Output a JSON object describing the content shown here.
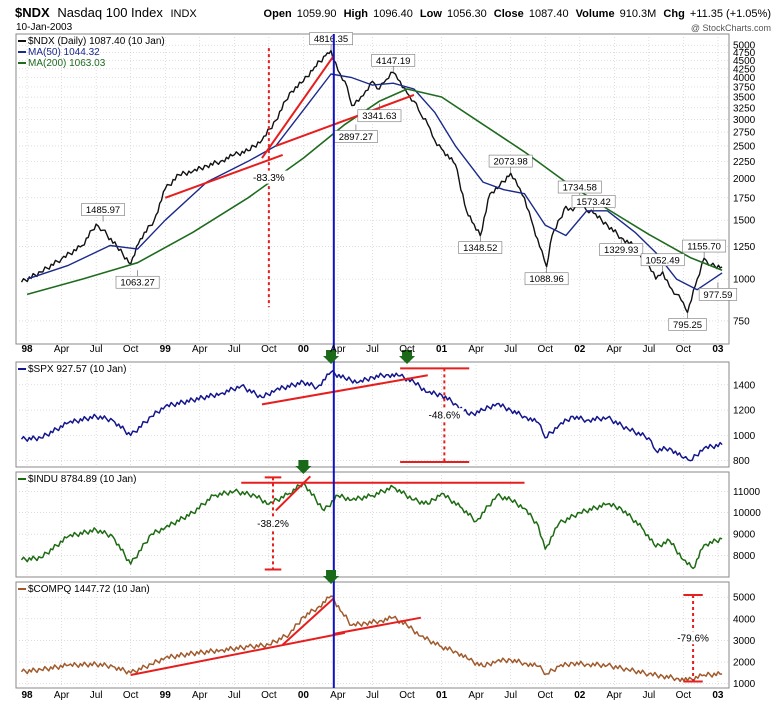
{
  "header": {
    "symbol": "$NDX",
    "name": "Nasdaq 100 Index",
    "exchange": "INDX",
    "date": "10-Jan-2003",
    "open_label": "Open",
    "open": "1059.90",
    "high_label": "High",
    "high": "1096.40",
    "low_label": "Low",
    "low": "1056.30",
    "close_label": "Close",
    "close": "1087.40",
    "volume_label": "Volume",
    "volume": "910.3M",
    "chg_label": "Chg",
    "chg": "+11.35 (+1.05%)",
    "watermark": "@ StockCharts.com"
  },
  "colors": {
    "ndx": "#111111",
    "ma50": "#1b2a8c",
    "ma200": "#1e6b1e",
    "spx": "#14168c",
    "indu": "#1d6b12",
    "compq": "#a05a2c",
    "annotation": "#e61e1e",
    "marker": "#1a6a1a",
    "vline": "#1010c8",
    "grid": "#c8c8c8"
  },
  "chart_data": [
    {
      "type": "line",
      "panel": "ndx",
      "legend": [
        {
          "text": "$NDX (Daily) 1087.40 (10 Jan)"
        },
        {
          "text": "MA(50) 1044.32"
        },
        {
          "text": "MA(200) 1063.03"
        }
      ],
      "y_scale": "log",
      "ylim": [
        640,
        5400
      ],
      "yticks": [
        750,
        1000,
        1250,
        1500,
        1750,
        2000,
        2250,
        2500,
        2750,
        3000,
        3250,
        3500,
        3750,
        4000,
        4250,
        4500,
        4750,
        5000
      ],
      "ytick_labels": [
        "750",
        "1000",
        "1250",
        "1500",
        "1750",
        "2000",
        "2250",
        "2500",
        "2750",
        "3000",
        "3250",
        "3500",
        "3750",
        "4000",
        "4250",
        "4500",
        "4750",
        "5000"
      ],
      "series": [
        {
          "key": "price",
          "t": [
            1997.96,
            1998.1,
            1998.25,
            1998.4,
            1998.5,
            1998.55,
            1998.65,
            1998.75,
            1998.82,
            1998.92,
            1999.0,
            1999.1,
            1999.2,
            1999.3,
            1999.4,
            1999.5,
            1999.6,
            1999.7,
            1999.8,
            1999.9,
            2000.0,
            2000.08,
            2000.16,
            2000.2,
            2000.25,
            2000.3,
            2000.35,
            2000.4,
            2000.45,
            2000.5,
            2000.55,
            2000.6,
            2000.65,
            2000.7,
            2000.75,
            2000.8,
            2000.85,
            2000.9,
            2000.95,
            2001.0,
            2001.1,
            2001.18,
            2001.22,
            2001.28,
            2001.35,
            2001.42,
            2001.5,
            2001.55,
            2001.6,
            2001.65,
            2001.71,
            2001.76,
            2001.8,
            2001.9,
            2001.95,
            2002.0,
            2002.05,
            2002.1,
            2002.2,
            2002.3,
            2002.4,
            2002.5,
            2002.55,
            2002.6,
            2002.65,
            2002.7,
            2002.75,
            2002.78,
            2002.85,
            2002.9,
            2002.95,
            2003.03
          ],
          "v": [
            980,
            1050,
            1150,
            1260,
            1460,
            1400,
            1250,
            1110,
            1320,
            1500,
            1860,
            2050,
            2100,
            2180,
            2250,
            2350,
            2420,
            2600,
            2980,
            3600,
            3900,
            4300,
            4650,
            4816,
            4200,
            3900,
            3300,
            3400,
            3650,
            3900,
            3700,
            3950,
            4147,
            3900,
            3600,
            3400,
            3100,
            2900,
            2600,
            2450,
            2200,
            1600,
            1480,
            1348,
            1800,
            1900,
            2073,
            1900,
            1750,
            1500,
            1250,
            1089,
            1350,
            1650,
            1600,
            1734,
            1600,
            1573,
            1450,
            1330,
            1250,
            1100,
            1000,
            1052,
            950,
            900,
            850,
            795,
            1000,
            1155,
            1100,
            1087
          ]
        },
        {
          "key": "ma50",
          "t": [
            1998.0,
            1998.3,
            1998.6,
            1998.8,
            1999.0,
            1999.3,
            1999.6,
            1999.8,
            2000.0,
            2000.2,
            2000.35,
            2000.5,
            2000.65,
            2000.8,
            2000.95,
            2001.1,
            2001.3,
            2001.45,
            2001.6,
            2001.75,
            2001.9,
            2002.05,
            2002.2,
            2002.4,
            2002.55,
            2002.7,
            2002.85,
            2003.03
          ],
          "v": [
            1000,
            1100,
            1260,
            1230,
            1500,
            1950,
            2250,
            2500,
            3200,
            4100,
            4000,
            3800,
            3850,
            3700,
            3150,
            2500,
            1950,
            1850,
            1800,
            1450,
            1350,
            1600,
            1600,
            1380,
            1200,
            1000,
            930,
            1044
          ]
        },
        {
          "key": "ma200",
          "t": [
            1998.0,
            1998.4,
            1998.8,
            1999.2,
            1999.6,
            2000.0,
            2000.3,
            2000.55,
            2000.75,
            2001.0,
            2001.3,
            2001.6,
            2001.9,
            2002.2,
            2002.5,
            2002.8,
            2003.03
          ],
          "v": [
            900,
            1000,
            1120,
            1380,
            1750,
            2300,
            2900,
            3400,
            3700,
            3500,
            2900,
            2400,
            1950,
            1620,
            1360,
            1160,
            1063
          ]
        }
      ],
      "annotations": [
        {
          "text": "4816.35",
          "t": 2000.2,
          "v": 4816
        },
        {
          "text": "4147.19",
          "t": 2000.65,
          "v": 4147
        },
        {
          "text": "3341.63",
          "t": 2000.55,
          "v": 3342
        },
        {
          "text": "2897.27",
          "t": 2000.38,
          "v": 2897
        },
        {
          "text": "2073.98",
          "t": 2001.5,
          "v": 2074
        },
        {
          "text": "1485.97",
          "t": 1998.55,
          "v": 1486
        },
        {
          "text": "1063.27",
          "t": 1998.8,
          "v": 1063
        },
        {
          "text": "1348.52",
          "t": 2001.28,
          "v": 1349
        },
        {
          "text": "1088.96",
          "t": 2001.76,
          "v": 1089
        },
        {
          "text": "1734.58",
          "t": 2002.0,
          "v": 1735
        },
        {
          "text": "1573.42",
          "t": 2002.1,
          "v": 1573
        },
        {
          "text": "1329.93",
          "t": 2002.3,
          "v": 1330
        },
        {
          "text": "1052.49",
          "t": 2002.6,
          "v": 1052
        },
        {
          "text": "795.25",
          "t": 2002.78,
          "v": 795
        },
        {
          "text": "1155.70",
          "t": 2002.9,
          "v": 1156
        },
        {
          "text": "977.59",
          "t": 2003.0,
          "v": 978
        },
        {
          "text": "-83.3%"
        }
      ],
      "drawn_lines": [
        {
          "t1": 1999.0,
          "v1": 1750,
          "t2": 1999.85,
          "v2": 2350
        },
        {
          "t1": 1999.7,
          "v1": 2300,
          "t2": 2000.22,
          "v2": 4650
        },
        {
          "t1": 1999.8,
          "v1": 2500,
          "t2": 2000.8,
          "v2": 3550
        },
        {
          "t1": 1999.75,
          "v1": 4900,
          "t2": 1999.75,
          "v2": 825
        }
      ]
    },
    {
      "type": "line",
      "panel": "spx",
      "legend": [
        {
          "text": "$SPX 927.57 (10 Jan)"
        }
      ],
      "ylim": [
        750,
        1580
      ],
      "yticks": [
        800,
        1000,
        1200,
        1400
      ],
      "ytick_labels": [
        "800",
        "1000",
        "1200",
        "1400"
      ],
      "series": [
        {
          "key": "price",
          "t": [
            1997.96,
            1998.1,
            1998.3,
            1998.5,
            1998.62,
            1998.75,
            1998.9,
            1999.0,
            1999.2,
            1999.4,
            1999.55,
            1999.7,
            1999.8,
            2000.0,
            2000.1,
            2000.2,
            2000.3,
            2000.4,
            2000.5,
            2000.6,
            2000.7,
            2000.8,
            2000.9,
            2001.0,
            2001.1,
            2001.2,
            2001.3,
            2001.4,
            2001.5,
            2001.6,
            2001.7,
            2001.75,
            2001.85,
            2001.95,
            2002.05,
            2002.2,
            2002.35,
            2002.5,
            2002.55,
            2002.65,
            2002.75,
            2002.8,
            2002.9,
            2003.03
          ],
          "v": [
            970,
            980,
            1100,
            1150,
            1120,
            1000,
            1150,
            1230,
            1280,
            1330,
            1390,
            1300,
            1360,
            1420,
            1380,
            1500,
            1450,
            1420,
            1460,
            1480,
            1470,
            1420,
            1340,
            1320,
            1250,
            1160,
            1200,
            1250,
            1200,
            1150,
            1100,
            980,
            1080,
            1150,
            1120,
            1140,
            1050,
            980,
            880,
            900,
            820,
            800,
            900,
            927
          ]
        }
      ],
      "annotations": [
        {
          "text": "-48.6%"
        }
      ],
      "drawn_lines": [
        {
          "t1": 1999.7,
          "v1": 1245,
          "t2": 2000.9,
          "v2": 1475
        },
        {
          "t1": 2000.7,
          "v1": 1530,
          "t2": 2001.2,
          "v2": 1530
        },
        {
          "t1": 2000.7,
          "v1": 790,
          "t2": 2001.2,
          "v2": 790
        },
        {
          "t1": 2001.02,
          "v1": 1530,
          "t2": 2001.02,
          "v2": 790
        }
      ]
    },
    {
      "type": "line",
      "panel": "indu",
      "legend": [
        {
          "text": "$INDU 8784.89 (10 Jan)"
        }
      ],
      "ylim": [
        7000,
        11900
      ],
      "yticks": [
        8000,
        9000,
        10000,
        11000
      ],
      "ytick_labels": [
        "8000",
        "9000",
        "10000",
        "11000"
      ],
      "series": [
        {
          "key": "price",
          "t": [
            1997.96,
            1998.1,
            1998.3,
            1998.5,
            1998.62,
            1998.75,
            1998.9,
            1999.0,
            1999.2,
            1999.35,
            1999.5,
            1999.65,
            1999.75,
            1999.9,
            2000.0,
            2000.15,
            2000.25,
            2000.35,
            2000.5,
            2000.65,
            2000.8,
            2000.9,
            2001.0,
            2001.15,
            2001.25,
            2001.4,
            2001.5,
            2001.6,
            2001.7,
            2001.75,
            2001.85,
            2002.0,
            2002.2,
            2002.3,
            2002.45,
            2002.55,
            2002.65,
            2002.75,
            2002.82,
            2002.9,
            2003.03
          ],
          "v": [
            7800,
            7900,
            8900,
            9200,
            8900,
            7600,
            9000,
            9300,
            10000,
            10800,
            11000,
            10800,
            10400,
            10900,
            11400,
            10100,
            10800,
            10600,
            10800,
            11200,
            10600,
            10400,
            10900,
            10200,
            9600,
            10800,
            10600,
            10200,
            9400,
            8300,
            9500,
            10000,
            10400,
            10200,
            9300,
            8400,
            8700,
            7800,
            7400,
            8500,
            8785
          ]
        }
      ],
      "annotations": [
        {
          "text": "-38.2%"
        }
      ],
      "drawn_lines": [
        {
          "t1": 1999.55,
          "v1": 11400,
          "t2": 2001.6,
          "v2": 11400
        },
        {
          "t1": 1999.8,
          "v1": 10100,
          "t2": 2000.05,
          "v2": 11700
        },
        {
          "t1": 1999.78,
          "v1": 11650,
          "t2": 1999.78,
          "v2": 7350
        },
        {
          "t1": 1999.72,
          "v1": 7350,
          "t2": 1999.84,
          "v2": 7350
        },
        {
          "t1": 1999.72,
          "v1": 11650,
          "t2": 1999.84,
          "v2": 11650
        }
      ]
    },
    {
      "type": "line",
      "panel": "compq",
      "legend": [
        {
          "text": "$COMPQ 1447.72 (10 Jan)"
        }
      ],
      "ylim": [
        800,
        5700
      ],
      "yticks": [
        1000,
        2000,
        3000,
        4000,
        5000
      ],
      "ytick_labels": [
        "1000",
        "2000",
        "3000",
        "4000",
        "5000"
      ],
      "series": [
        {
          "key": "price",
          "t": [
            1997.96,
            1998.1,
            1998.3,
            1998.5,
            1998.62,
            1998.75,
            1998.9,
            1999.0,
            1999.2,
            1999.4,
            1999.6,
            1999.75,
            1999.9,
            2000.0,
            2000.1,
            2000.2,
            2000.28,
            2000.35,
            2000.45,
            2000.55,
            2000.65,
            2000.75,
            2000.85,
            2001.0,
            2001.1,
            2001.2,
            2001.3,
            2001.4,
            2001.5,
            2001.6,
            2001.7,
            2001.76,
            2001.85,
            2001.95,
            2002.05,
            2002.2,
            2002.35,
            2002.5,
            2002.6,
            2002.7,
            2002.78,
            2002.9,
            2003.03
          ],
          "v": [
            1550,
            1650,
            1850,
            1900,
            1800,
            1500,
            1900,
            2200,
            2400,
            2550,
            2700,
            2800,
            3300,
            4100,
            4500,
            5050,
            4300,
            3700,
            3800,
            3900,
            4050,
            3700,
            3200,
            2700,
            2500,
            2100,
            1800,
            2050,
            2100,
            1950,
            1800,
            1450,
            1800,
            1950,
            1900,
            1850,
            1650,
            1450,
            1350,
            1250,
            1150,
            1400,
            1448
          ]
        }
      ],
      "annotations": [
        {
          "text": "-79.6%"
        }
      ],
      "drawn_lines": [
        {
          "t1": 1998.75,
          "v1": 1400,
          "t2": 2000.3,
          "v2": 3350
        },
        {
          "t1": 1999.85,
          "v1": 2800,
          "t2": 2000.22,
          "v2": 4950
        },
        {
          "t1": 2000.22,
          "v1": 3300,
          "t2": 2000.85,
          "v2": 4050
        },
        {
          "t1": 2002.82,
          "v1": 5100,
          "t2": 2002.82,
          "v2": 1100
        },
        {
          "t1": 2002.75,
          "v1": 5100,
          "t2": 2002.89,
          "v2": 5100
        },
        {
          "t1": 2002.75,
          "v1": 1100,
          "t2": 2002.89,
          "v2": 1100
        }
      ]
    }
  ],
  "x_axis": {
    "tick_labels": [
      {
        "text": "98",
        "t": 1998.0,
        "bold": true
      },
      {
        "text": "Apr",
        "t": 1998.25
      },
      {
        "text": "Jul",
        "t": 1998.5
      },
      {
        "text": "Oct",
        "t": 1998.75
      },
      {
        "text": "99",
        "t": 1999.0,
        "bold": true
      },
      {
        "text": "Apr",
        "t": 1999.25
      },
      {
        "text": "Jul",
        "t": 1999.5
      },
      {
        "text": "Oct",
        "t": 1999.75
      },
      {
        "text": "00",
        "t": 2000.0,
        "bold": true
      },
      {
        "text": "Apr",
        "t": 2000.25
      },
      {
        "text": "Jul",
        "t": 2000.5
      },
      {
        "text": "Oct",
        "t": 2000.75
      },
      {
        "text": "01",
        "t": 2001.0,
        "bold": true
      },
      {
        "text": "Apr",
        "t": 2001.25
      },
      {
        "text": "Jul",
        "t": 2001.5
      },
      {
        "text": "Oct",
        "t": 2001.75
      },
      {
        "text": "02",
        "t": 2002.0,
        "bold": true
      },
      {
        "text": "Apr",
        "t": 2002.25
      },
      {
        "text": "Jul",
        "t": 2002.5
      },
      {
        "text": "Oct",
        "t": 2002.75
      },
      {
        "text": "03",
        "t": 2003.0,
        "bold": true
      }
    ],
    "vertical_marker_t": 2000.22,
    "top_markers": [
      {
        "panel": 1,
        "t": 2000.2
      },
      {
        "panel": 1,
        "t": 2000.75
      },
      {
        "panel": 2,
        "t": 2000.0
      },
      {
        "panel": 3,
        "t": 2000.2
      }
    ]
  }
}
